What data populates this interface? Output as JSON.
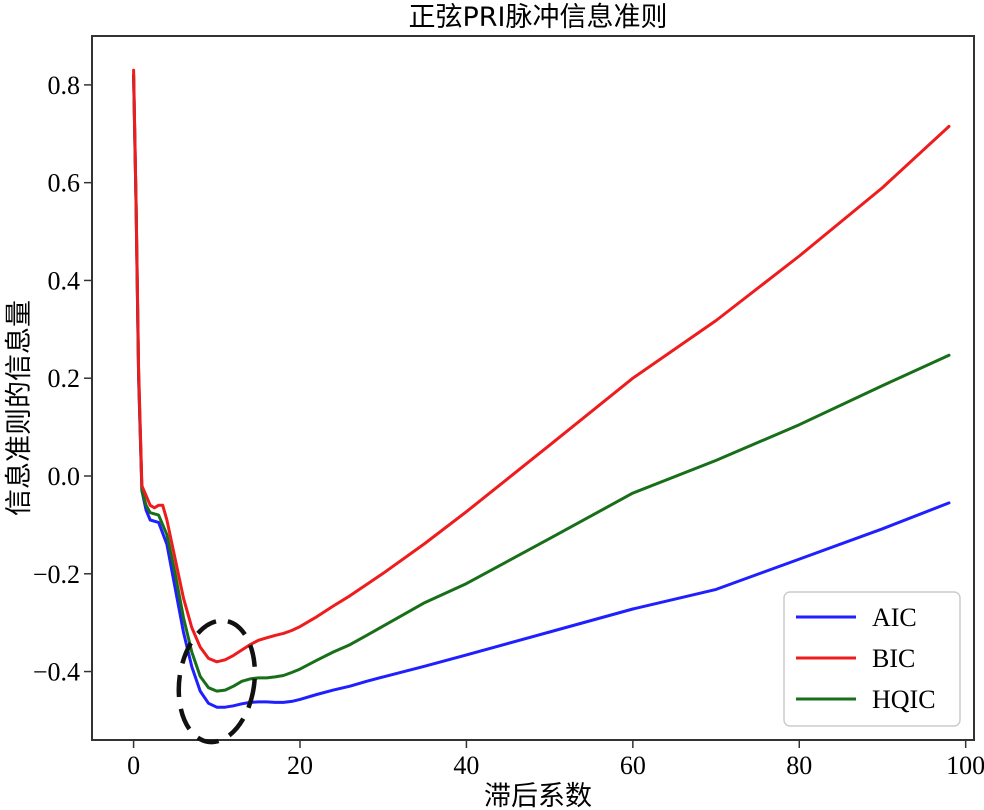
{
  "chart_data": {
    "type": "line",
    "title": "正弦PRI脉冲信息准则",
    "xlabel": "滞后系数",
    "ylabel": "信息准则的信息量",
    "xlim": [
      -5,
      101
    ],
    "ylim": [
      -0.54,
      0.9
    ],
    "x_ticks": [
      0,
      20,
      40,
      60,
      80,
      100
    ],
    "x_tick_labels": [
      "0",
      "20",
      "40",
      "60",
      "80",
      "100"
    ],
    "y_ticks": [
      0.8,
      0.6,
      0.4,
      0.2,
      0.0,
      -0.2,
      -0.4
    ],
    "y_tick_labels": [
      "0.8",
      "0.6",
      "0.4",
      "0.2",
      "0.0",
      "−0.2",
      "−0.4"
    ],
    "grid": false,
    "legend_position": "lower-right",
    "series": [
      {
        "name": "AIC",
        "color": "#1f1fff",
        "x": [
          0,
          0.3,
          0.6,
          1,
          1.5,
          2,
          3,
          4,
          5,
          6,
          7,
          8,
          9,
          10,
          11,
          12,
          13,
          14,
          15,
          16,
          17,
          18,
          19,
          20,
          22,
          24,
          26,
          28,
          30,
          35,
          40,
          50,
          60,
          70,
          80,
          90,
          98
        ],
        "y": [
          0.82,
          0.55,
          0.2,
          -0.03,
          -0.07,
          -0.09,
          -0.095,
          -0.14,
          -0.23,
          -0.32,
          -0.39,
          -0.44,
          -0.465,
          -0.473,
          -0.473,
          -0.47,
          -0.466,
          -0.463,
          -0.462,
          -0.462,
          -0.463,
          -0.463,
          -0.461,
          -0.457,
          -0.447,
          -0.438,
          -0.43,
          -0.42,
          -0.411,
          -0.389,
          -0.366,
          -0.319,
          -0.272,
          -0.232,
          -0.17,
          -0.108,
          -0.055
        ]
      },
      {
        "name": "BIC",
        "color": "#ee1c1c",
        "x": [
          0,
          0.3,
          0.6,
          1,
          1.5,
          2,
          2.5,
          3,
          3.5,
          4,
          5,
          6,
          7,
          8,
          9,
          10,
          11,
          12,
          13,
          14,
          15,
          16,
          17,
          18,
          19,
          20,
          22,
          24,
          26,
          28,
          30,
          35,
          40,
          50,
          60,
          70,
          80,
          90,
          98
        ],
        "y": [
          0.83,
          0.56,
          0.22,
          -0.02,
          -0.04,
          -0.06,
          -0.065,
          -0.06,
          -0.06,
          -0.09,
          -0.17,
          -0.25,
          -0.31,
          -0.35,
          -0.373,
          -0.38,
          -0.376,
          -0.367,
          -0.356,
          -0.345,
          -0.336,
          -0.331,
          -0.326,
          -0.322,
          -0.316,
          -0.308,
          -0.288,
          -0.266,
          -0.245,
          -0.222,
          -0.199,
          -0.138,
          -0.073,
          0.063,
          0.2,
          0.318,
          0.45,
          0.59,
          0.715
        ]
      },
      {
        "name": "HQIC",
        "color": "#196f19",
        "x": [
          0,
          0.3,
          0.6,
          1,
          1.5,
          2,
          3,
          4,
          5,
          6,
          7,
          8,
          9,
          10,
          11,
          12,
          13,
          14,
          15,
          16,
          17,
          18,
          19,
          20,
          22,
          24,
          26,
          28,
          30,
          35,
          40,
          50,
          60,
          70,
          80,
          90,
          98
        ],
        "y": [
          0.82,
          0.55,
          0.21,
          -0.03,
          -0.06,
          -0.075,
          -0.08,
          -0.12,
          -0.2,
          -0.29,
          -0.36,
          -0.41,
          -0.433,
          -0.44,
          -0.438,
          -0.43,
          -0.42,
          -0.415,
          -0.413,
          -0.413,
          -0.411,
          -0.408,
          -0.402,
          -0.395,
          -0.377,
          -0.36,
          -0.345,
          -0.326,
          -0.307,
          -0.259,
          -0.22,
          -0.128,
          -0.035,
          0.032,
          0.105,
          0.185,
          0.247
        ]
      }
    ],
    "annotation": {
      "type": "dashed-ellipse",
      "cx": 10,
      "cy": -0.42,
      "rx": 4.5,
      "ry": 0.125
    }
  }
}
